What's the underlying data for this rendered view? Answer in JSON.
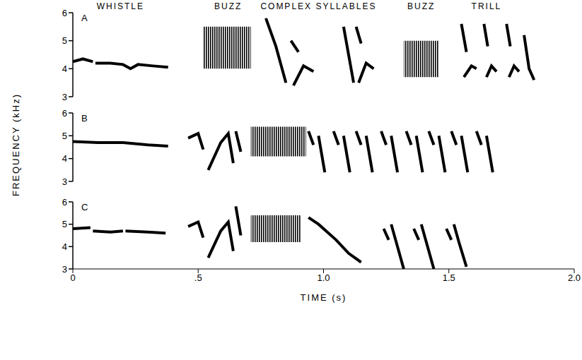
{
  "chart_data": [
    {
      "type": "spectrogram",
      "panel": "A",
      "color": "#000000",
      "y_label": "FREQUENCY (kHz)",
      "xlim": [
        0,
        2
      ],
      "ylim": [
        3,
        6
      ],
      "yticks": [
        3,
        4,
        5,
        6
      ],
      "tick_labels": "y",
      "annotations": [
        {
          "text": "WHISTLE",
          "x": 0.19
        },
        {
          "text": "BUZZ",
          "x": 0.62
        },
        {
          "text": "COMPLEX SYLLABLES",
          "x": 0.98
        },
        {
          "text": "BUZZ",
          "x": 1.39
        },
        {
          "text": "TRILL",
          "x": 1.65
        }
      ],
      "traces": [
        {
          "x": [
            0,
            0.04,
            0.08
          ],
          "y": [
            4.25,
            4.35,
            4.25
          ]
        },
        {
          "x": [
            0.09,
            0.15,
            0.2,
            0.23,
            0.26,
            0.32,
            0.38
          ],
          "y": [
            4.2,
            4.2,
            4.15,
            4.0,
            4.15,
            4.1,
            4.05
          ]
        },
        {
          "x": [
            0.77,
            0.81,
            0.85
          ],
          "y": [
            5.8,
            4.8,
            3.5
          ]
        },
        {
          "x": [
            0.87,
            0.9
          ],
          "y": [
            5.0,
            4.6
          ]
        },
        {
          "x": [
            0.88,
            0.92,
            0.96
          ],
          "y": [
            3.4,
            4.1,
            3.9
          ]
        },
        {
          "x": [
            1.08,
            1.12
          ],
          "y": [
            5.5,
            3.5
          ]
        },
        {
          "x": [
            1.13,
            1.15
          ],
          "y": [
            5.5,
            4.9
          ]
        },
        {
          "x": [
            1.14,
            1.17,
            1.2
          ],
          "y": [
            3.5,
            4.2,
            4.0
          ]
        },
        {
          "x": [
            1.55,
            1.57
          ],
          "y": [
            5.6,
            4.6
          ]
        },
        {
          "x": [
            1.56,
            1.59,
            1.61
          ],
          "y": [
            3.7,
            4.1,
            4.0
          ]
        },
        {
          "x": [
            1.64,
            1.655
          ],
          "y": [
            5.6,
            4.8
          ]
        },
        {
          "x": [
            1.65,
            1.67,
            1.69
          ],
          "y": [
            3.7,
            4.1,
            3.9
          ]
        },
        {
          "x": [
            1.73,
            1.745
          ],
          "y": [
            5.6,
            4.8
          ]
        },
        {
          "x": [
            1.74,
            1.76,
            1.78
          ],
          "y": [
            3.7,
            4.1,
            3.9
          ]
        },
        {
          "x": [
            1.8,
            1.82,
            1.84
          ],
          "y": [
            5.2,
            4.0,
            3.6
          ]
        }
      ],
      "bands": [
        {
          "x": [
            0.52,
            0.71
          ],
          "y": [
            4.0,
            5.5
          ]
        },
        {
          "x": [
            1.32,
            1.46
          ],
          "y": [
            3.7,
            5.0
          ]
        }
      ]
    },
    {
      "type": "spectrogram",
      "panel": "B",
      "color": "#000000",
      "xlim": [
        0,
        2
      ],
      "ylim": [
        3,
        6
      ],
      "yticks": [
        3,
        4,
        5,
        6
      ],
      "tick_labels": "y",
      "traces": [
        {
          "x": [
            0,
            0.1,
            0.2,
            0.3,
            0.38
          ],
          "y": [
            4.75,
            4.7,
            4.7,
            4.6,
            4.55
          ]
        },
        {
          "x": [
            0.46,
            0.5,
            0.52
          ],
          "y": [
            4.9,
            5.1,
            4.4
          ]
        },
        {
          "x": [
            0.54,
            0.59,
            0.62,
            0.64
          ],
          "y": [
            3.5,
            4.7,
            5.1,
            3.8
          ]
        },
        {
          "x": [
            0.65,
            0.67
          ],
          "y": [
            5.2,
            4.3
          ]
        },
        {
          "x": [
            0.94,
            0.96
          ],
          "y": [
            5.2,
            4.6
          ]
        },
        {
          "x": [
            0.98,
            1.005
          ],
          "y": [
            5.0,
            3.4
          ]
        },
        {
          "x": [
            1.04,
            1.06
          ],
          "y": [
            5.2,
            4.6
          ]
        },
        {
          "x": [
            1.08,
            1.105
          ],
          "y": [
            5.0,
            3.4
          ]
        },
        {
          "x": [
            1.13,
            1.15
          ],
          "y": [
            5.2,
            4.6
          ]
        },
        {
          "x": [
            1.17,
            1.195
          ],
          "y": [
            5.0,
            3.4
          ]
        },
        {
          "x": [
            1.23,
            1.25
          ],
          "y": [
            5.2,
            4.6
          ]
        },
        {
          "x": [
            1.27,
            1.295
          ],
          "y": [
            5.0,
            3.4
          ]
        },
        {
          "x": [
            1.33,
            1.35
          ],
          "y": [
            5.2,
            4.6
          ]
        },
        {
          "x": [
            1.37,
            1.395
          ],
          "y": [
            5.0,
            3.4
          ]
        },
        {
          "x": [
            1.42,
            1.44
          ],
          "y": [
            5.2,
            4.6
          ]
        },
        {
          "x": [
            1.46,
            1.485
          ],
          "y": [
            5.0,
            3.4
          ]
        },
        {
          "x": [
            1.51,
            1.53
          ],
          "y": [
            5.2,
            4.6
          ]
        },
        {
          "x": [
            1.55,
            1.575
          ],
          "y": [
            5.0,
            3.4
          ]
        },
        {
          "x": [
            1.61,
            1.63
          ],
          "y": [
            5.2,
            4.6
          ]
        },
        {
          "x": [
            1.65,
            1.675
          ],
          "y": [
            5.0,
            3.4
          ]
        }
      ],
      "bands": [
        {
          "x": [
            0.71,
            0.93
          ],
          "y": [
            4.1,
            5.4
          ]
        }
      ]
    },
    {
      "type": "spectrogram",
      "panel": "C",
      "color": "#000000",
      "x_label": "TIME (s)",
      "xlim": [
        0,
        2
      ],
      "xticks": [
        0,
        {
          "value": 0.5,
          "label": ".5"
        },
        {
          "value": 1,
          "label": "1.0"
        },
        1.5,
        {
          "value": 2,
          "label": "2.0"
        }
      ],
      "ylim": [
        3,
        6
      ],
      "yticks": [
        3,
        4,
        5,
        6
      ],
      "tick_labels": true,
      "traces": [
        {
          "x": [
            0,
            0.07
          ],
          "y": [
            4.8,
            4.85
          ]
        },
        {
          "x": [
            0.08,
            0.15,
            0.2
          ],
          "y": [
            4.7,
            4.65,
            4.7
          ]
        },
        {
          "x": [
            0.21,
            0.3,
            0.37
          ],
          "y": [
            4.7,
            4.65,
            4.6
          ]
        },
        {
          "x": [
            0.46,
            0.5,
            0.52
          ],
          "y": [
            4.9,
            5.1,
            4.4
          ]
        },
        {
          "x": [
            0.54,
            0.59,
            0.62,
            0.64
          ],
          "y": [
            3.5,
            4.7,
            5.1,
            3.8
          ]
        },
        {
          "x": [
            0.65,
            0.67
          ],
          "y": [
            5.8,
            4.5
          ]
        },
        {
          "x": [
            0.94,
            0.98,
            1.05,
            1.1,
            1.15
          ],
          "y": [
            5.3,
            5.0,
            4.3,
            3.7,
            3.3
          ]
        },
        {
          "x": [
            1.24,
            1.26
          ],
          "y": [
            4.8,
            4.3
          ]
        },
        {
          "x": [
            1.27,
            1.29,
            1.32
          ],
          "y": [
            5.0,
            4.2,
            3.0
          ]
        },
        {
          "x": [
            1.36,
            1.38
          ],
          "y": [
            4.8,
            4.3
          ]
        },
        {
          "x": [
            1.39,
            1.41,
            1.44
          ],
          "y": [
            5.0,
            4.2,
            3.0
          ]
        },
        {
          "x": [
            1.49,
            1.51
          ],
          "y": [
            4.8,
            4.3
          ]
        },
        {
          "x": [
            1.52,
            1.54,
            1.57
          ],
          "y": [
            5.0,
            4.2,
            3.1
          ]
        }
      ],
      "bands": [
        {
          "x": [
            0.71,
            0.91
          ],
          "y": [
            4.2,
            5.4
          ]
        }
      ]
    }
  ]
}
